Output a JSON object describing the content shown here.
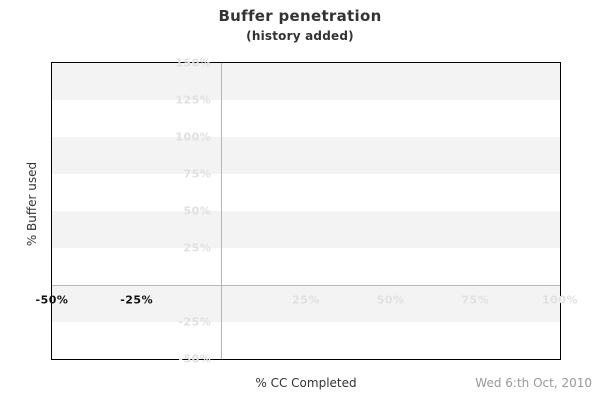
{
  "header": {
    "title": "Buffer penetration",
    "subtitle": "(history added)"
  },
  "footer": {
    "date": "Wed 6:th Oct, 2010"
  },
  "chart_data": {
    "type": "line",
    "title": "Buffer penetration",
    "subtitle": "(history added)",
    "xlabel": "% CC Completed",
    "ylabel": "% Buffer used",
    "xlim": [
      -50,
      100
    ],
    "ylim": [
      -50,
      150
    ],
    "x_ticks": [
      {
        "value": -50,
        "label": "-50%",
        "style": "emphasized"
      },
      {
        "value": -25,
        "label": "-25%",
        "style": "emphasized"
      },
      {
        "value": 25,
        "label": "25%",
        "style": "muted"
      },
      {
        "value": 50,
        "label": "50%",
        "style": "muted"
      },
      {
        "value": 75,
        "label": "75%",
        "style": "muted"
      },
      {
        "value": 100,
        "label": "100%",
        "style": "muted"
      }
    ],
    "y_ticks": [
      {
        "value": 150,
        "label": "150%"
      },
      {
        "value": 125,
        "label": "125%"
      },
      {
        "value": 100,
        "label": "100%"
      },
      {
        "value": 75,
        "label": "75%"
      },
      {
        "value": 50,
        "label": "50%"
      },
      {
        "value": 25,
        "label": "25%"
      },
      {
        "value": -25,
        "label": "-25%"
      },
      {
        "value": -50,
        "label": "-50%"
      }
    ],
    "series": [],
    "grid": {
      "zero_x_line": true,
      "zero_y_line": true,
      "horizontal_bands": true,
      "band_step": 25,
      "first_band_shaded": true
    },
    "legend": "none"
  },
  "colors": {
    "band": "#f3f3f3",
    "plot_border": "#000000",
    "zero_line": "#b5b5b5",
    "tick_muted": "#e0e0e0",
    "tick_emphasized": "#111111",
    "title_text": "#333333",
    "axis_title_text": "#333333",
    "date_text": "#999999"
  }
}
